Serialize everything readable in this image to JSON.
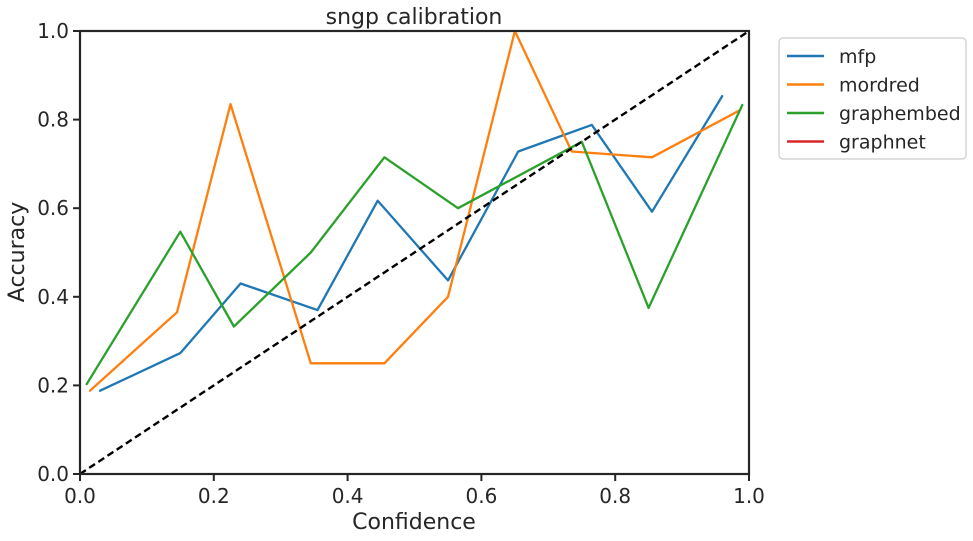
{
  "chart_data": {
    "type": "line",
    "title": "sngp calibration",
    "xlabel": "Confidence",
    "ylabel": "Accuracy",
    "xlim": [
      0.0,
      1.0
    ],
    "ylim": [
      0.0,
      1.0
    ],
    "xticks": [
      "0.0",
      "0.2",
      "0.4",
      "0.6",
      "0.8",
      "1.0"
    ],
    "yticks": [
      "0.0",
      "0.2",
      "0.4",
      "0.6",
      "0.8",
      "1.0"
    ],
    "grid": false,
    "legend_position": "outside-top-right",
    "reference_line": {
      "x": [
        0.0,
        1.0
      ],
      "y": [
        0.0,
        1.0
      ],
      "color": "#000000",
      "style": "dashed"
    },
    "series": [
      {
        "name": "mfp",
        "color": "#1f77b4",
        "x": [
          0.03,
          0.15,
          0.24,
          0.355,
          0.445,
          0.55,
          0.655,
          0.765,
          0.855,
          0.96
        ],
        "y": [
          0.188,
          0.273,
          0.43,
          0.37,
          0.617,
          0.437,
          0.728,
          0.788,
          0.592,
          0.853
        ]
      },
      {
        "name": "mordred",
        "color": "#ff7f0e",
        "x": [
          0.015,
          0.145,
          0.225,
          0.345,
          0.455,
          0.55,
          0.65,
          0.735,
          0.855,
          0.985
        ],
        "y": [
          0.188,
          0.365,
          0.835,
          0.25,
          0.25,
          0.4,
          1.0,
          0.728,
          0.715,
          0.82
        ]
      },
      {
        "name": "graphembed",
        "color": "#2ca02c",
        "x": [
          0.01,
          0.15,
          0.23,
          0.345,
          0.455,
          0.565,
          0.75,
          0.85,
          0.99
        ],
        "y": [
          0.203,
          0.547,
          0.333,
          0.5,
          0.715,
          0.6,
          0.75,
          0.375,
          0.833
        ]
      },
      {
        "name": "graphnet",
        "color": "#d62728",
        "x": [],
        "y": []
      }
    ]
  }
}
